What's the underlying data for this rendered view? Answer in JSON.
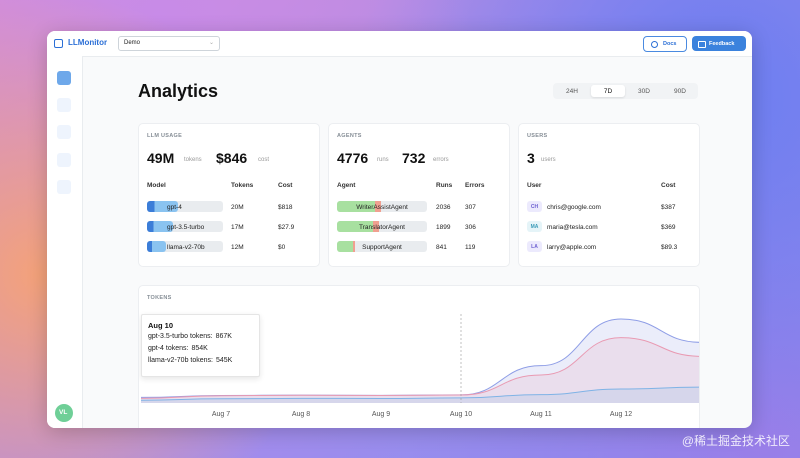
{
  "app": {
    "name": "LLMonitor",
    "project": "Demo",
    "buttons": [
      "Docs",
      "Feedback"
    ],
    "avatar": "VL"
  },
  "page": {
    "title": "Analytics",
    "ranges": [
      "24H",
      "7D",
      "30D",
      "90D"
    ],
    "selected_range": "7D"
  },
  "llm_usage": {
    "title": "LLM USAGE",
    "total": {
      "value": 49,
      "label": "49M"
    },
    "total_unit": "tokens",
    "cost": "$846",
    "cost_unit": "cost",
    "columns": [
      "Model",
      "Tokens",
      "Cost"
    ],
    "rows": [
      {
        "model": "gpt-4",
        "tokens": {
          "value": 20,
          "label": "20M"
        },
        "cost": "$818"
      },
      {
        "model": "gpt-3.5-turbo",
        "tokens": {
          "value": 17,
          "label": "17M"
        },
        "cost": "$27.9"
      },
      {
        "model": "llama-v2-70b",
        "tokens": {
          "value": 12,
          "label": "12M"
        },
        "cost": "$0"
      }
    ]
  },
  "agents": {
    "title": "AGENTS",
    "runs": 4776,
    "runs_unit": "runs",
    "errors": 732,
    "errors_unit": "errors",
    "columns": [
      "Agent",
      "Runs",
      "Errors"
    ],
    "rows": [
      {
        "agent": "WriterAssistAgent",
        "runs": 2036,
        "errors": 307
      },
      {
        "agent": "TranslatorAgent",
        "runs": 1899,
        "errors": 306
      },
      {
        "agent": "SupportAgent",
        "runs": 841,
        "errors": 119
      }
    ]
  },
  "users": {
    "title": "USERS",
    "count": 3,
    "count_unit": "users",
    "columns": [
      "User",
      "Cost"
    ],
    "rows": [
      {
        "initials": "CH",
        "email": "chris@google.com",
        "cost": "$387"
      },
      {
        "initials": "MA",
        "email": "maria@tesla.com",
        "cost": "$369"
      },
      {
        "initials": "LA",
        "email": "larry@apple.com",
        "cost": "$89.3"
      }
    ]
  },
  "tokens_chart": {
    "title": "TOKENS",
    "type": "area",
    "categories": [
      null,
      "Aug 7",
      "Aug 8",
      "Aug 9",
      "Aug 10",
      "Aug 11",
      "Aug 12",
      null
    ],
    "series": [
      {
        "name": "gpt-3.5-turbo",
        "color": "#8e9de6",
        "values": [
          600,
          800,
          850,
          820,
          867,
          4000,
          9000,
          6500
        ]
      },
      {
        "name": "gpt-4",
        "color": "#e99ab2",
        "values": [
          500,
          780,
          830,
          800,
          854,
          3000,
          7000,
          5000
        ]
      },
      {
        "name": "llama-v2-70b",
        "color": "#7fb3e6",
        "values": [
          300,
          450,
          500,
          480,
          545,
          900,
          1500,
          1700
        ]
      }
    ],
    "tooltip": {
      "title": "Aug 10",
      "items": [
        {
          "label": "gpt-3.5-turbo tokens:",
          "value": "867K"
        },
        {
          "label": "gpt-4 tokens:",
          "value": "854K"
        },
        {
          "label": "llama-v2-70b tokens:",
          "value": "545K"
        }
      ]
    }
  },
  "watermark": "@稀土掘金技术社区"
}
